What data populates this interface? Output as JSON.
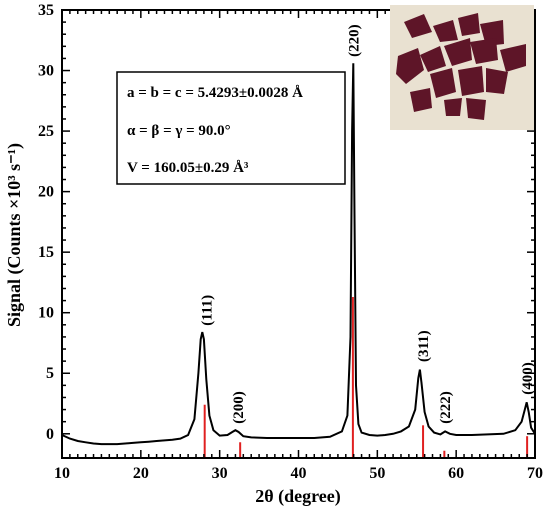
{
  "chart_data": {
    "type": "line",
    "xlabel": "2θ (degree)",
    "ylabel": "Signal (Counts ×10³ s⁻¹)",
    "xlim": [
      10,
      70
    ],
    "ylim": [
      -2,
      35
    ],
    "x_ticks": [
      "10",
      "20",
      "30",
      "40",
      "50",
      "60",
      "70"
    ],
    "y_ticks": [
      "0",
      "5",
      "10",
      "15",
      "20",
      "25",
      "30",
      "35"
    ],
    "grid": false,
    "series": [
      {
        "type": "line",
        "color": "#000000",
        "x": [
          10,
          11,
          12,
          13,
          14,
          15,
          16,
          17,
          18,
          19,
          20,
          21,
          22,
          23,
          24,
          25,
          26,
          26.8,
          27.3,
          27.6,
          27.8,
          28.0,
          28.3,
          28.7,
          29.2,
          30,
          31,
          31.6,
          32,
          32.4,
          33,
          34,
          36,
          38,
          40,
          42,
          44,
          45.5,
          46.2,
          46.6,
          46.8,
          46.95,
          47.1,
          47.3,
          47.6,
          48,
          49,
          50,
          51,
          52,
          53,
          54,
          54.8,
          55.2,
          55.4,
          55.6,
          56,
          56.5,
          57.2,
          58,
          58.6,
          59.2,
          60,
          62,
          64,
          66,
          67.5,
          68.3,
          68.7,
          68.95,
          69.2,
          69.5,
          70
        ],
        "y": [
          -0.1,
          -0.4,
          -0.6,
          -0.7,
          -0.8,
          -0.85,
          -0.85,
          -0.85,
          -0.8,
          -0.75,
          -0.7,
          -0.65,
          -0.6,
          -0.55,
          -0.5,
          -0.4,
          -0.1,
          1.2,
          5.0,
          7.8,
          8.4,
          7.8,
          4.5,
          1.5,
          0.3,
          -0.15,
          -0.1,
          0.15,
          0.3,
          0.15,
          -0.2,
          -0.3,
          -0.35,
          -0.35,
          -0.35,
          -0.35,
          -0.25,
          0.2,
          1.5,
          8.0,
          25.0,
          30.6,
          18.0,
          4.0,
          0.8,
          0.1,
          -0.1,
          -0.15,
          -0.1,
          0.0,
          0.2,
          0.6,
          2.0,
          4.6,
          5.3,
          4.2,
          1.8,
          0.6,
          0.1,
          -0.05,
          0.2,
          0.0,
          -0.1,
          -0.1,
          -0.05,
          0.0,
          0.3,
          1.0,
          2.0,
          2.6,
          1.8,
          0.5,
          0.0
        ]
      },
      {
        "type": "stick",
        "color": "#e02020",
        "x": [
          28.1,
          32.6,
          46.9,
          55.8,
          58.5,
          69.0
        ],
        "y": [
          2.4,
          -0.7,
          11.3,
          0.7,
          -1.4,
          -0.2
        ]
      }
    ],
    "peak_labels": [
      {
        "label": "(111)",
        "x": 28.3,
        "y": 8.6
      },
      {
        "label": "(200)",
        "x": 32.3,
        "y": 0.5
      },
      {
        "label": "(220)",
        "x": 46.95,
        "y": 30.8
      },
      {
        "label": "(311)",
        "x": 55.8,
        "y": 5.6
      },
      {
        "label": "(222)",
        "x": 58.6,
        "y": 0.5
      },
      {
        "label": "(400)",
        "x": 69.0,
        "y": 2.9
      }
    ],
    "annotation_box": {
      "line1": "a = b = c = 5.4293±0.0028 Å",
      "line2": "α = β = γ = 90.0°",
      "line3": "V = 160.05±0.29 Å³"
    },
    "inset": {
      "type": "photo",
      "background": "#e9e1d1",
      "crystal_color": "#5e1528"
    }
  }
}
